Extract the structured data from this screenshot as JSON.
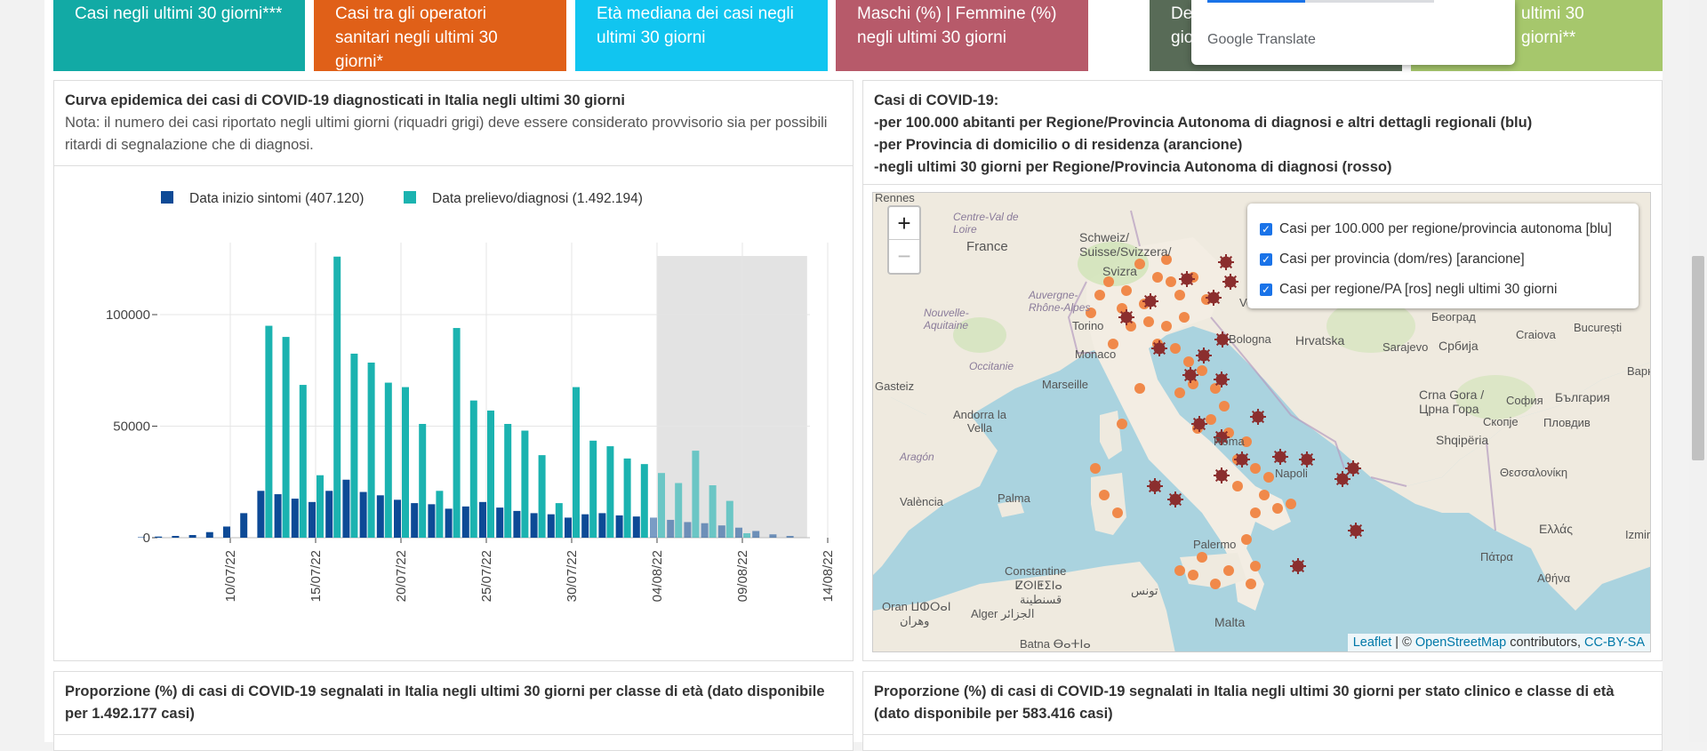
{
  "tiles": [
    {
      "text": "Casi negli ultimi 30 giorni***",
      "color": "#12aaa5"
    },
    {
      "text": "Casi tra gli operatori sanitari negli ultimi 30 giorni*",
      "color": "#e06018"
    },
    {
      "text": "Età mediana dei casi negli ultimi 30 giorni",
      "color": "#11c5f0"
    },
    {
      "text": "Maschi (%) | Femmine (%) negli ultimi 30 giorni",
      "color": "#b75a6a"
    },
    {
      "text": "De",
      "text2": "gio",
      "color": "#586b57"
    },
    {
      "text": "ultimi 30 giorni**",
      "color": "#a6c76c"
    }
  ],
  "translate_popup": {
    "brand": "Google",
    "label": "Translate"
  },
  "chart_panel": {
    "title": "Curva epidemica dei casi di COVID-19 diagnosticati in Italia negli ultimi 30 giorni",
    "note": "Nota: il numero dei casi riportato negli ultimi giorni (riquadri grigi) deve essere considerato provvisorio sia per possibili ritardi di segnalazione che di diagnosi."
  },
  "chart_data": {
    "type": "bar",
    "legend": [
      {
        "label": "Data inizio sintomi (407.120)",
        "color": "#0d4a96"
      },
      {
        "label": "Data prelievo/diagnosi (1.492.194)",
        "color": "#1bb3b0"
      }
    ],
    "x_start": "2022-07-05",
    "x_ticks": [
      "10/07/22",
      "15/07/22",
      "20/07/22",
      "25/07/22",
      "30/07/22",
      "04/08/22",
      "09/08/22",
      "14/08/22"
    ],
    "y_ticks": [
      "100000",
      "50000",
      "0"
    ],
    "ylim": [
      0,
      130000
    ],
    "provisional_from": "04/08/22",
    "series": [
      {
        "name": "Data inizio sintomi",
        "values": [
          200,
          500,
          800,
          1200,
          2500,
          5000,
          11000,
          21000,
          19500,
          17500,
          16000,
          21000,
          26000,
          20500,
          19000,
          17000,
          15500,
          15000,
          13000,
          14000,
          16000,
          13500,
          12000,
          11000,
          10500,
          9000,
          10500,
          11000,
          10000,
          9500,
          9000,
          8000,
          7000,
          6500,
          5500,
          4500,
          3000,
          1500,
          800
        ]
      },
      {
        "name": "Data prelievo/diagnosi",
        "values": [
          0,
          0,
          0,
          0,
          0,
          0,
          0,
          95000,
          90000,
          68500,
          28000,
          126000,
          82500,
          78500,
          69500,
          67500,
          51000,
          21000,
          94000,
          61500,
          57000,
          51000,
          48000,
          37000,
          15500,
          67500,
          43500,
          41000,
          35500,
          33000,
          29000,
          24500,
          39000,
          23500,
          16500,
          2000,
          0,
          0,
          0
        ]
      }
    ]
  },
  "map_panel": {
    "title": "Casi di COVID-19:",
    "lines": [
      "-per 100.000 abitanti per Regione/Provincia Autonoma di diagnosi e altri dettagli regionali (blu)",
      "-per Provincia di domicilio o di residenza (arancione)",
      "-negli ultimi 30 giorni per Regione/Provincia Autonoma di diagnosi (rosso)"
    ],
    "zoom_in": "+",
    "zoom_out": "−",
    "layers": [
      "Casi per 100.000 per regione/provincia autonoma [blu]",
      "Casi per provincia (dom/res) [arancione]",
      "Casi per regione/PA [ros] negli ultimi 30 giorni"
    ],
    "attribution": {
      "leaflet": "Leaflet",
      "sep": " | © ",
      "osm": "OpenStreetMap",
      "contrib": " contributors, ",
      "license": "CC-BY-SA"
    },
    "labels": [
      "Rennes",
      "Centre-Val de Loire",
      "France",
      "Nouvelle-Aquitaine",
      "Auvergne-Rhône-Alpes",
      "Occitanie",
      "Schweiz/ Suisse/Svizzera/",
      "Svizra",
      "Torino",
      "Monaco",
      "Marseille",
      "Andorra la Vella",
      "Aragón",
      "València",
      "Palma",
      "Gasteiz",
      "Venezia",
      "Bologna",
      "Hrvatska",
      "Sarajevo",
      "Србија",
      "Београд",
      "Craiova",
      "București",
      "Bapн",
      "Roma",
      "Napoli",
      "Crna Gora / Црна Гора",
      "Shqipëria",
      "София",
      "България",
      "Скопје",
      "Пловдив",
      "Θεσσαλονίκη",
      "Ελλάς",
      "Πάτρα",
      "Αθήνα",
      "Izmir",
      "Palermo",
      "Malta",
      "Constantine",
      "ⵇⵙⵏⵟⵉⵏⴰ",
      "قسنطينة",
      "Alger الجزائر",
      "تونس",
      "Oran ⵡⵀⵔⴰⵏ",
      "وهران",
      "Batna ⴱⴰⵜⵏⴰ"
    ]
  },
  "age_panel": {
    "title": "Proporzione (%) di casi di COVID-19 segnalati in Italia negli ultimi 30 giorni per classe di età (dato disponibile per 1.492.177 casi)"
  },
  "clinical_panel": {
    "title": "Proporzione (%) di casi di COVID-19 segnalati in Italia negli ultimi 30 giorni per stato clinico e classe di età (dato disponibile per 583.416 casi)"
  }
}
